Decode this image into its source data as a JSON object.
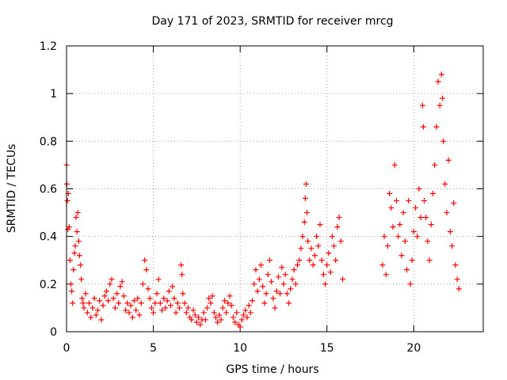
{
  "chart_data": {
    "type": "scatter",
    "title": "Day 171 of 2023, SRMTID for receiver mrcg",
    "xlabel": "GPS time / hours",
    "ylabel": "SRMTID / TECUs",
    "xlim": [
      0,
      24
    ],
    "ylim": [
      0,
      1.2
    ],
    "x_ticks": [
      0,
      5,
      10,
      15,
      20
    ],
    "x_tick_labels": [
      "0",
      "5",
      "10",
      "15",
      "20"
    ],
    "y_ticks": [
      0,
      0.2,
      0.4,
      0.6,
      0.8,
      1.0,
      1.2
    ],
    "y_tick_labels": [
      "0",
      "0.2",
      "0.4",
      "0.6",
      "0.8",
      "1",
      "1.2"
    ],
    "grid": true,
    "marker": "plus",
    "series": [
      {
        "name": "SRMTID",
        "color": "#ff0000",
        "points": [
          [
            0.0,
            0.7
          ],
          [
            0.02,
            0.62
          ],
          [
            0.05,
            0.55
          ],
          [
            0.08,
            0.43
          ],
          [
            0.1,
            0.58
          ],
          [
            0.15,
            0.44
          ],
          [
            0.2,
            0.3
          ],
          [
            0.25,
            0.2
          ],
          [
            0.3,
            0.17
          ],
          [
            0.35,
            0.12
          ],
          [
            0.4,
            0.26
          ],
          [
            0.45,
            0.33
          ],
          [
            0.5,
            0.36
          ],
          [
            0.55,
            0.48
          ],
          [
            0.6,
            0.42
          ],
          [
            0.65,
            0.5
          ],
          [
            0.7,
            0.38
          ],
          [
            0.75,
            0.32
          ],
          [
            0.8,
            0.28
          ],
          [
            0.85,
            0.22
          ],
          [
            0.9,
            0.14
          ],
          [
            0.95,
            0.12
          ],
          [
            1.0,
            0.1
          ],
          [
            1.1,
            0.16
          ],
          [
            1.2,
            0.08
          ],
          [
            1.3,
            0.12
          ],
          [
            1.4,
            0.06
          ],
          [
            1.5,
            0.1
          ],
          [
            1.6,
            0.14
          ],
          [
            1.7,
            0.07
          ],
          [
            1.8,
            0.09
          ],
          [
            1.9,
            0.13
          ],
          [
            2.0,
            0.05
          ],
          [
            2.1,
            0.11
          ],
          [
            2.2,
            0.15
          ],
          [
            2.3,
            0.17
          ],
          [
            2.4,
            0.13
          ],
          [
            2.5,
            0.2
          ],
          [
            2.6,
            0.22
          ],
          [
            2.7,
            0.14
          ],
          [
            2.8,
            0.1
          ],
          [
            2.9,
            0.16
          ],
          [
            3.0,
            0.12
          ],
          [
            3.1,
            0.19
          ],
          [
            3.2,
            0.21
          ],
          [
            3.3,
            0.15
          ],
          [
            3.4,
            0.09
          ],
          [
            3.5,
            0.12
          ],
          [
            3.6,
            0.08
          ],
          [
            3.7,
            0.11
          ],
          [
            3.8,
            0.06
          ],
          [
            3.9,
            0.13
          ],
          [
            4.0,
            0.09
          ],
          [
            4.1,
            0.14
          ],
          [
            4.2,
            0.07
          ],
          [
            4.3,
            0.12
          ],
          [
            4.4,
            0.2
          ],
          [
            4.5,
            0.3
          ],
          [
            4.6,
            0.26
          ],
          [
            4.7,
            0.18
          ],
          [
            4.8,
            0.14
          ],
          [
            4.9,
            0.1
          ],
          [
            5.0,
            0.08
          ],
          [
            5.1,
            0.12
          ],
          [
            5.2,
            0.16
          ],
          [
            5.3,
            0.22
          ],
          [
            5.4,
            0.12
          ],
          [
            5.5,
            0.09
          ],
          [
            5.6,
            0.14
          ],
          [
            5.7,
            0.1
          ],
          [
            5.8,
            0.13
          ],
          [
            5.9,
            0.17
          ],
          [
            6.0,
            0.11
          ],
          [
            6.1,
            0.19
          ],
          [
            6.2,
            0.14
          ],
          [
            6.3,
            0.08
          ],
          [
            6.4,
            0.12
          ],
          [
            6.5,
            0.1
          ],
          [
            6.6,
            0.28
          ],
          [
            6.65,
            0.24
          ],
          [
            6.7,
            0.16
          ],
          [
            6.8,
            0.12
          ],
          [
            6.9,
            0.08
          ],
          [
            7.0,
            0.1
          ],
          [
            7.1,
            0.06
          ],
          [
            7.2,
            0.05
          ],
          [
            7.3,
            0.09
          ],
          [
            7.4,
            0.07
          ],
          [
            7.5,
            0.04
          ],
          [
            7.6,
            0.06
          ],
          [
            7.7,
            0.03
          ],
          [
            7.8,
            0.05
          ],
          [
            7.9,
            0.08
          ],
          [
            8.0,
            0.05
          ],
          [
            8.1,
            0.1
          ],
          [
            8.2,
            0.14
          ],
          [
            8.3,
            0.12
          ],
          [
            8.4,
            0.15
          ],
          [
            8.5,
            0.08
          ],
          [
            8.6,
            0.06
          ],
          [
            8.7,
            0.04
          ],
          [
            8.8,
            0.07
          ],
          [
            8.9,
            0.05
          ],
          [
            9.0,
            0.1
          ],
          [
            9.1,
            0.13
          ],
          [
            9.2,
            0.08
          ],
          [
            9.3,
            0.12
          ],
          [
            9.4,
            0.15
          ],
          [
            9.5,
            0.11
          ],
          [
            9.6,
            0.06
          ],
          [
            9.7,
            0.04
          ],
          [
            9.8,
            0.08
          ],
          [
            9.9,
            0.03
          ],
          [
            10.0,
            0.02
          ],
          [
            10.1,
            0.05
          ],
          [
            10.2,
            0.07
          ],
          [
            10.3,
            0.09
          ],
          [
            10.4,
            0.06
          ],
          [
            10.5,
            0.11
          ],
          [
            10.6,
            0.08
          ],
          [
            10.7,
            0.13
          ],
          [
            10.8,
            0.2
          ],
          [
            10.9,
            0.26
          ],
          [
            11.0,
            0.17
          ],
          [
            11.1,
            0.22
          ],
          [
            11.2,
            0.28
          ],
          [
            11.3,
            0.19
          ],
          [
            11.4,
            0.12
          ],
          [
            11.5,
            0.16
          ],
          [
            11.6,
            0.24
          ],
          [
            11.7,
            0.3
          ],
          [
            11.8,
            0.21
          ],
          [
            11.9,
            0.14
          ],
          [
            12.0,
            0.1
          ],
          [
            12.1,
            0.17
          ],
          [
            12.2,
            0.23
          ],
          [
            12.3,
            0.16
          ],
          [
            12.4,
            0.27
          ],
          [
            12.5,
            0.2
          ],
          [
            12.6,
            0.24
          ],
          [
            12.7,
            0.16
          ],
          [
            12.8,
            0.12
          ],
          [
            12.9,
            0.18
          ],
          [
            13.0,
            0.22
          ],
          [
            13.1,
            0.26
          ],
          [
            13.2,
            0.2
          ],
          [
            13.3,
            0.28
          ],
          [
            13.4,
            0.3
          ],
          [
            13.5,
            0.35
          ],
          [
            13.6,
            0.4
          ],
          [
            13.7,
            0.46
          ],
          [
            13.75,
            0.56
          ],
          [
            13.8,
            0.62
          ],
          [
            13.85,
            0.5
          ],
          [
            13.9,
            0.38
          ],
          [
            14.0,
            0.3
          ],
          [
            14.1,
            0.35
          ],
          [
            14.2,
            0.28
          ],
          [
            14.3,
            0.32
          ],
          [
            14.4,
            0.4
          ],
          [
            14.5,
            0.36
          ],
          [
            14.6,
            0.45
          ],
          [
            14.7,
            0.3
          ],
          [
            14.8,
            0.24
          ],
          [
            14.9,
            0.2
          ],
          [
            15.0,
            0.28
          ],
          [
            15.1,
            0.33
          ],
          [
            15.2,
            0.25
          ],
          [
            15.3,
            0.4
          ],
          [
            15.4,
            0.36
          ],
          [
            15.5,
            0.3
          ],
          [
            15.6,
            0.44
          ],
          [
            15.7,
            0.48
          ],
          [
            15.8,
            0.38
          ],
          [
            15.9,
            0.22
          ],
          [
            18.2,
            0.28
          ],
          [
            18.3,
            0.4
          ],
          [
            18.4,
            0.24
          ],
          [
            18.5,
            0.36
          ],
          [
            18.6,
            0.58
          ],
          [
            18.7,
            0.52
          ],
          [
            18.8,
            0.44
          ],
          [
            18.9,
            0.7
          ],
          [
            19.0,
            0.55
          ],
          [
            19.1,
            0.4
          ],
          [
            19.2,
            0.45
          ],
          [
            19.3,
            0.32
          ],
          [
            19.4,
            0.5
          ],
          [
            19.5,
            0.38
          ],
          [
            19.6,
            0.26
          ],
          [
            19.7,
            0.55
          ],
          [
            19.8,
            0.2
          ],
          [
            19.9,
            0.3
          ],
          [
            20.0,
            0.42
          ],
          [
            20.1,
            0.52
          ],
          [
            20.2,
            0.4
          ],
          [
            20.3,
            0.6
          ],
          [
            20.4,
            0.48
          ],
          [
            20.5,
            0.95
          ],
          [
            20.55,
            0.86
          ],
          [
            20.6,
            0.55
          ],
          [
            20.7,
            0.48
          ],
          [
            20.8,
            0.38
          ],
          [
            20.9,
            0.3
          ],
          [
            21.0,
            0.45
          ],
          [
            21.1,
            0.58
          ],
          [
            21.2,
            0.7
          ],
          [
            21.3,
            0.86
          ],
          [
            21.4,
            1.05
          ],
          [
            21.5,
            0.95
          ],
          [
            21.6,
            1.08
          ],
          [
            21.65,
            0.98
          ],
          [
            21.7,
            0.8
          ],
          [
            21.8,
            0.62
          ],
          [
            21.9,
            0.5
          ],
          [
            22.0,
            0.72
          ],
          [
            22.1,
            0.42
          ],
          [
            22.2,
            0.36
          ],
          [
            22.3,
            0.54
          ],
          [
            22.4,
            0.28
          ],
          [
            22.5,
            0.22
          ],
          [
            22.6,
            0.18
          ]
        ]
      }
    ]
  }
}
